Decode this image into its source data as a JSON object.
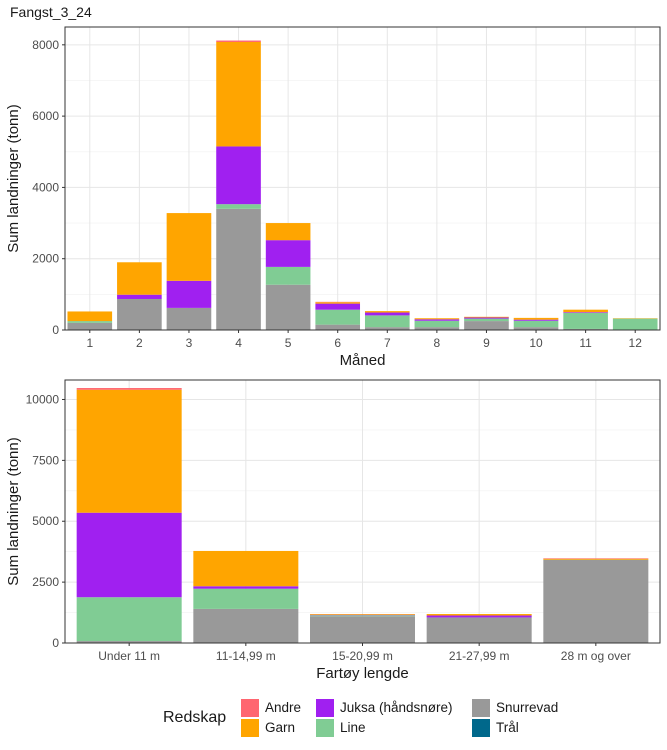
{
  "figure": {
    "title": "Fangst_3_24"
  },
  "legend": {
    "title": "Redskap",
    "placement": "bottom",
    "columns": [
      [
        "Andre",
        "Garn"
      ],
      [
        "Juksa (håndsnøre)",
        "Line"
      ],
      [
        "Snurrevad",
        "Trål"
      ]
    ]
  },
  "colors": {
    "Snurrevad": "#999999",
    "Line": "#80CC94",
    "Juksa (håndsnøre)": "#A020F0",
    "Garn": "#FFA500",
    "Andre": "#FF6670",
    "Trål": "#00688B"
  },
  "chart_data": [
    {
      "type": "bar",
      "stacked": true,
      "title": "",
      "xlabel": "Måned",
      "ylabel": "Sum landninger (tonn)",
      "ylim": [
        0,
        8500
      ],
      "yticks": [
        0,
        2000,
        4000,
        6000,
        8000
      ],
      "grid": true,
      "categories": [
        "1",
        "2",
        "3",
        "4",
        "5",
        "6",
        "7",
        "8",
        "9",
        "10",
        "11",
        "12"
      ],
      "series": [
        {
          "name": "Snurrevad",
          "values": [
            200,
            870,
            620,
            3400,
            1270,
            150,
            80,
            80,
            250,
            80,
            30,
            0
          ]
        },
        {
          "name": "Line",
          "values": [
            50,
            0,
            0,
            130,
            500,
            420,
            330,
            180,
            70,
            180,
            450,
            320
          ]
        },
        {
          "name": "Juksa (håndsnøre)",
          "values": [
            0,
            120,
            760,
            1620,
            750,
            170,
            80,
            40,
            30,
            30,
            20,
            0
          ]
        },
        {
          "name": "Garn",
          "values": [
            270,
            910,
            1900,
            2930,
            480,
            40,
            40,
            30,
            20,
            50,
            70,
            10
          ]
        },
        {
          "name": "Andre",
          "values": [
            0,
            0,
            0,
            40,
            0,
            10,
            0,
            0,
            0,
            0,
            0,
            0
          ]
        },
        {
          "name": "Trål",
          "values": [
            0,
            0,
            0,
            0,
            0,
            0,
            0,
            0,
            0,
            0,
            0,
            0
          ]
        }
      ]
    },
    {
      "type": "bar",
      "stacked": true,
      "title": "",
      "xlabel": "Fartøy lengde",
      "ylabel": "Sum landninger (tonn)",
      "ylim": [
        0,
        10800
      ],
      "yticks": [
        0,
        2500,
        5000,
        7500,
        10000
      ],
      "yticklabels": [
        "0",
        "2500",
        "5000",
        "7500",
        "10000"
      ],
      "grid": true,
      "categories": [
        "Under 11 m",
        "11-14,99 m",
        "15-20,99 m",
        "21-27,99 m",
        "28 m og over"
      ],
      "series": [
        {
          "name": "Snurrevad",
          "values": [
            80,
            1400,
            1100,
            1050,
            3420
          ]
        },
        {
          "name": "Line",
          "values": [
            1800,
            830,
            40,
            0,
            0
          ]
        },
        {
          "name": "Juksa (håndsnøre)",
          "values": [
            3470,
            100,
            20,
            80,
            0
          ]
        },
        {
          "name": "Garn",
          "values": [
            5050,
            1450,
            30,
            60,
            40
          ]
        },
        {
          "name": "Andre",
          "values": [
            70,
            0,
            0,
            0,
            20
          ]
        },
        {
          "name": "Trål",
          "values": [
            0,
            0,
            0,
            0,
            0
          ]
        }
      ]
    }
  ]
}
